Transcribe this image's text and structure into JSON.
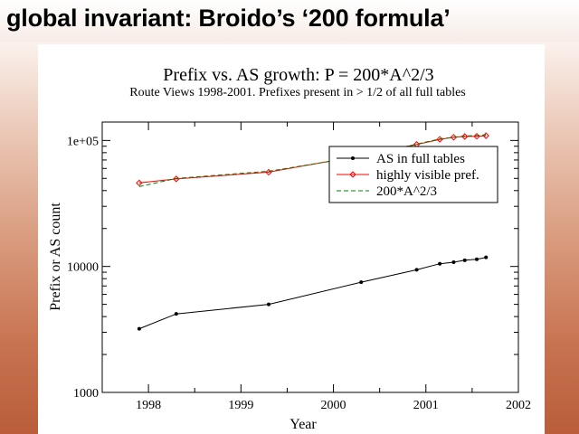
{
  "slide": {
    "title": "global invariant: Broido’s ‘200 formula’"
  },
  "chart_data": {
    "type": "line",
    "title": "Prefix vs. AS growth: P = 200*A^2/3",
    "subtitle": "Route Views 1998-2001. Prefixes present in > 1/2 of all full tables",
    "xlabel": "Year",
    "ylabel": "Prefix or AS count",
    "xlim": [
      1997.5,
      2002
    ],
    "ylim": [
      1000,
      140000
    ],
    "yscale": "log",
    "x_ticks": [
      1998,
      1999,
      2000,
      2001,
      2002
    ],
    "x_tick_labels": [
      "1998",
      "1999",
      "2000",
      "2001",
      "2002"
    ],
    "y_ticks": [
      1000,
      10000,
      100000
    ],
    "y_tick_labels": [
      "1000",
      "10000",
      "1e+05"
    ],
    "grid": false,
    "legend_position": "upper-right",
    "series": [
      {
        "name": "AS in full tables",
        "color": "#000000",
        "marker": "dot",
        "dash": "solid",
        "x": [
          1997.9,
          1998.3,
          1999.3,
          2000.3,
          2000.9,
          2001.15,
          2001.3,
          2001.42,
          2001.55,
          2001.65
        ],
        "y": [
          3200,
          4200,
          5000,
          7500,
          9400,
          10500,
          10800,
          11200,
          11400,
          11800
        ]
      },
      {
        "name": "highly visible pref.",
        "color": "#ff0000",
        "marker": "diamond",
        "dash": "solid",
        "x": [
          1997.9,
          1998.3,
          1999.3,
          2000.3,
          2000.9,
          2001.15,
          2001.3,
          2001.42,
          2001.55,
          2001.65
        ],
        "y": [
          46000,
          49500,
          56000,
          76000,
          93000,
          102000,
          106000,
          107500,
          108000,
          109000
        ]
      },
      {
        "name": "200*A^2/3",
        "color": "#008000",
        "marker": "none",
        "dash": "dashed",
        "x": [
          1997.9,
          1998.3,
          1999.3,
          2000.3,
          2000.9,
          2001.15,
          2001.3,
          2001.42,
          2001.55,
          2001.65
        ],
        "y": [
          43000,
          50000,
          57000,
          75000,
          93500,
          103000,
          106000,
          108500,
          109500,
          111000
        ]
      }
    ]
  }
}
